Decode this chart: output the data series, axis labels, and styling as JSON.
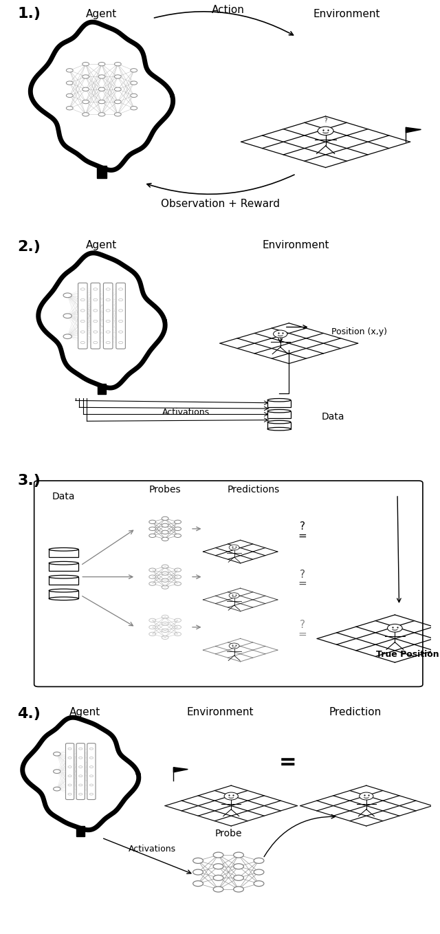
{
  "bg_color": "#ffffff",
  "panel_labels": [
    "1.)",
    "2.)",
    "3.)",
    "4.)"
  ],
  "panel_label_fontsize": 16,
  "panel1": {
    "title_agent": "Agent",
    "title_environment": "Environment",
    "title_action": "Action",
    "title_obs_reward": "Observation + Reward"
  },
  "panel2": {
    "title_agent": "Agent",
    "title_environment": "Environment",
    "label_activations": "Activations",
    "label_data": "Data",
    "label_position": "Position (x,y)"
  },
  "panel3": {
    "label_data": "Data",
    "label_probes": "Probes",
    "label_predictions": "Predictions",
    "label_true_position": "True Position"
  },
  "panel4": {
    "title_agent": "Agent",
    "title_environment": "Environment",
    "title_prediction": "Prediction",
    "label_activations": "Activations",
    "label_probe": "Probe"
  }
}
